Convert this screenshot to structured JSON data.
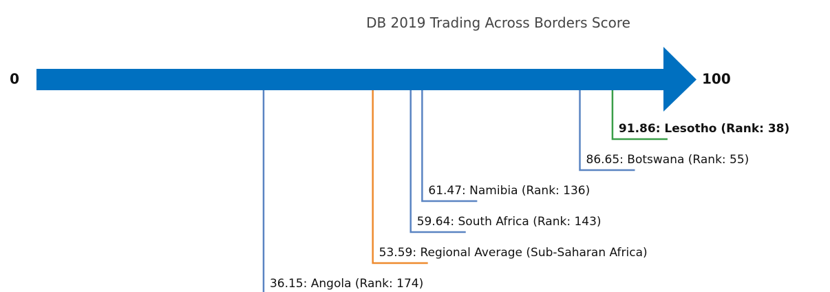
{
  "chart_data": {
    "type": "number-line",
    "title": "DB 2019 Trading Across Borders Score",
    "xlim": [
      0,
      100
    ],
    "xticks": [
      0,
      100
    ],
    "axis_color": "#0070c0",
    "values": [
      91.86,
      86.65,
      61.47,
      59.64,
      53.59,
      36.15
    ],
    "value_labels": [
      "91.86: Lesotho (Rank: 38)",
      "86.65: Botswana (Rank: 55)",
      "61.47: Namibia (Rank: 136)",
      "59.64: South Africa (Rank: 143)",
      "53.59: Regional Average (Sub-Saharan Africa)",
      "36.15: Angola (Rank: 174)"
    ],
    "colors": [
      "#3a9d48",
      "#5a84c2",
      "#5a84c2",
      "#5a84c2",
      "#ee8a2e",
      "#5a84c2"
    ],
    "bold": [
      true,
      false,
      false,
      false,
      false,
      false
    ]
  }
}
